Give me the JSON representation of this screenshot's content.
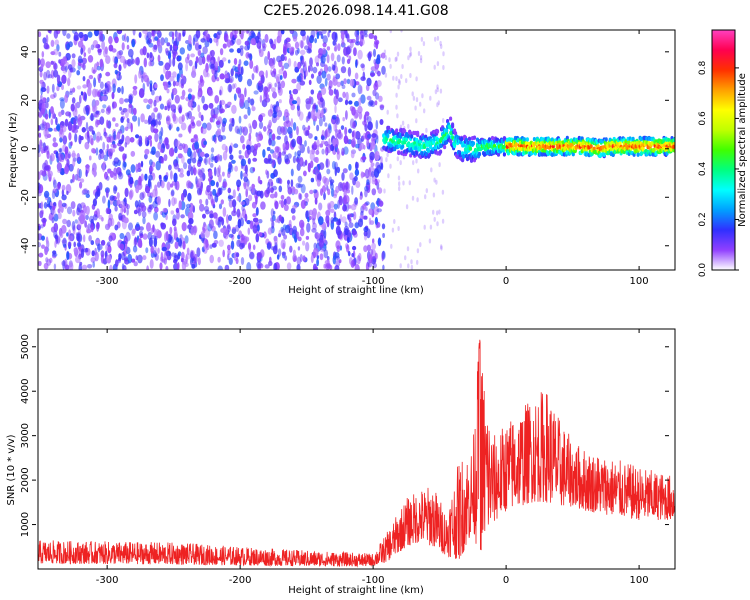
{
  "title": "C2E5.2026.098.14.41.G08",
  "chart_data": [
    {
      "type": "heatmap",
      "xlabel": "Height of straight line (km)",
      "ylabel": "Frequency (Hz)",
      "xlim": [
        -352,
        127
      ],
      "ylim": [
        -50,
        49
      ],
      "x_ticks": [
        -300,
        -200,
        -100,
        0,
        100
      ],
      "y_ticks": [
        -40,
        -20,
        0,
        20,
        40
      ],
      "colorbar": {
        "label": "Normalized spectral amplitude",
        "range": [
          0,
          0.95
        ],
        "ticks": [
          0.0,
          0.2,
          0.4,
          0.6,
          0.8
        ],
        "colors": [
          "#ffffff",
          "#9040ff",
          "#3030ff",
          "#00a0ff",
          "#00ffff",
          "#00ff80",
          "#40ff00",
          "#c0ff00",
          "#ffff00",
          "#ffa000",
          "#ff3000",
          "#ff0050",
          "#ff40c0"
        ]
      },
      "noise_region_x": [
        -352,
        -92
      ],
      "signal_track": {
        "x": [
          -92,
          -80,
          -70,
          -60,
          -50,
          -42,
          -38,
          -32,
          -25,
          -15,
          0,
          20,
          40,
          60,
          70,
          80,
          100,
          127
        ],
        "freq": [
          4,
          3,
          2,
          1,
          3,
          8,
          2,
          0,
          0,
          1,
          1,
          1,
          1,
          1,
          0,
          1,
          1,
          1
        ]
      }
    },
    {
      "type": "line",
      "xlabel": "Height of straight line (km)",
      "ylabel": "SNR (10 * v/v)",
      "xlim": [
        -352,
        127
      ],
      "ylim": [
        0,
        5400
      ],
      "x_ticks": [
        -300,
        -200,
        -100,
        0,
        100
      ],
      "y_ticks": [
        1000,
        2000,
        3000,
        4000,
        5000
      ],
      "color": "#ee2222",
      "envelope": {
        "x": [
          -352,
          -300,
          -250,
          -200,
          -150,
          -100,
          -90,
          -75,
          -65,
          -55,
          -45,
          -35,
          -25,
          -20,
          -10,
          0,
          10,
          20,
          30,
          40,
          50,
          60,
          80,
          100,
          127
        ],
        "low": [
          120,
          110,
          100,
          80,
          60,
          60,
          150,
          500,
          600,
          500,
          300,
          200,
          800,
          300,
          1000,
          1300,
          1400,
          1500,
          1500,
          1400,
          1400,
          1300,
          1200,
          1100,
          1100
        ],
        "high": [
          650,
          620,
          600,
          500,
          420,
          350,
          800,
          1600,
          1800,
          1900,
          1300,
          2500,
          2800,
          5200,
          3000,
          3300,
          3600,
          3900,
          4100,
          3400,
          2900,
          2700,
          2500,
          2300,
          2100
        ]
      }
    }
  ]
}
